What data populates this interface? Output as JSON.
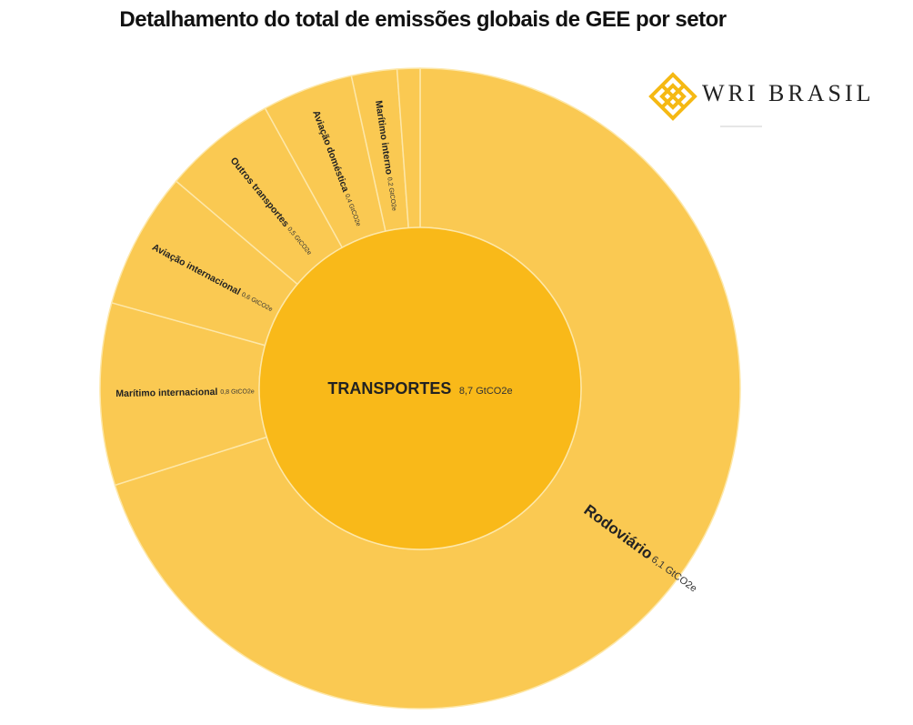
{
  "title": "Detalhamento do total de emissões globais de GEE por setor",
  "logo": {
    "text": "WRI BRASIL",
    "icon": "wri-diamond-lattice-icon",
    "color": "#f5b914"
  },
  "chart_data": {
    "type": "sunburst",
    "center": {
      "name": "TRANSPORTES",
      "value": 8.7,
      "value_label": "8,7 GtCO2e",
      "color": "#f9b919"
    },
    "ring_color": "#fac952",
    "segment_border": "#fde7a8",
    "segments": [
      {
        "name": "Rodoviário",
        "value": 6.1,
        "value_label": "6,1 GtCO2e"
      },
      {
        "name": "Marítimo internacional",
        "value": 0.8,
        "value_label": "0,8 GtCO2e"
      },
      {
        "name": "Aviação internacional",
        "value": 0.6,
        "value_label": "0,6 GtCO2e"
      },
      {
        "name": "Outros transportes",
        "value": 0.5,
        "value_label": "0,5 GtCO2e"
      },
      {
        "name": "Aviação doméstica",
        "value": 0.4,
        "value_label": "0,4 GtCO2e"
      },
      {
        "name": "Marítimo interno",
        "value": 0.2,
        "value_label": "0,2 GtCO2e"
      },
      {
        "name": "",
        "value": 0.1,
        "value_label": ""
      }
    ]
  }
}
